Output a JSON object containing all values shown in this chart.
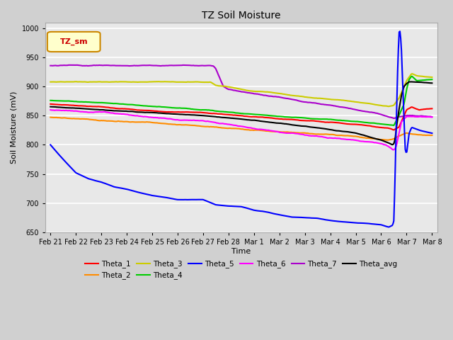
{
  "title": "TZ Soil Moisture",
  "xlabel": "Time",
  "ylabel": "Soil Moisture (mV)",
  "ylim": [
    650,
    1010
  ],
  "yticks": [
    650,
    700,
    750,
    800,
    850,
    900,
    950,
    1000
  ],
  "legend_label": "TZ_sm",
  "x_labels": [
    "Feb 21",
    "Feb 22",
    "Feb 23",
    "Feb 24",
    "Feb 25",
    "Feb 26",
    "Feb 27",
    "Feb 28",
    "Mar 1",
    "Mar 2",
    "Mar 3",
    "Mar 4",
    "Mar 5",
    "Mar 6",
    "Mar 7",
    "Mar 8"
  ],
  "colors": {
    "Theta_1": "#ff0000",
    "Theta_2": "#ff8c00",
    "Theta_3": "#cccc00",
    "Theta_4": "#00cc00",
    "Theta_5": "#0000ff",
    "Theta_6": "#ff00ff",
    "Theta_7": "#aa00cc",
    "Theta_avg": "#000000"
  },
  "fig_bg": "#d0d0d0",
  "plot_bg": "#e8e8e8",
  "grid_color": "#ffffff",
  "n_points": 500
}
